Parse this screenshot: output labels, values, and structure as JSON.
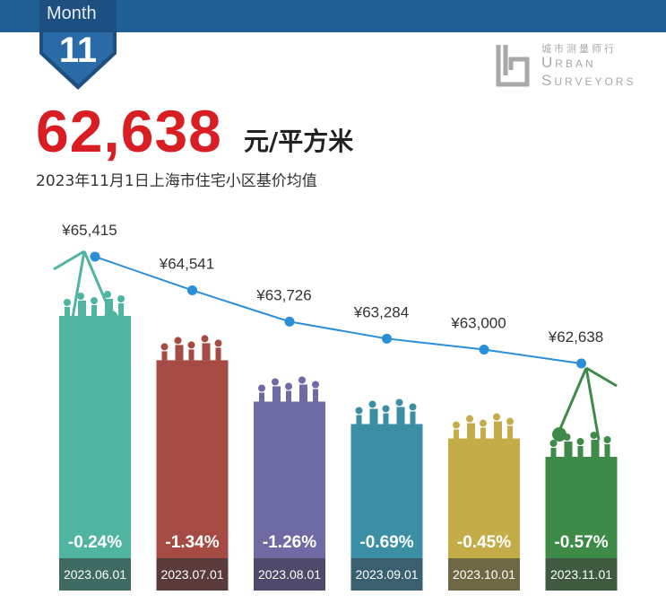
{
  "header": {
    "month_label": "Month",
    "month_number": "11"
  },
  "logo": {
    "chinese": "城市测量师行",
    "english_line1": "Urban",
    "english_line2": "Surveyors"
  },
  "headline": {
    "value": "62,638",
    "unit": "元/平方米",
    "subtitle": "2023年11月1日上海市住宅小区基价均值"
  },
  "colors": {
    "header_band": "#1f5f95",
    "headline_value": "#d81e23",
    "line": "#2a8ed8",
    "bars": [
      "#4fb5a0",
      "#a64a44",
      "#6e6aa4",
      "#3a8fa4",
      "#c4ac48",
      "#3e8a48"
    ],
    "date_boxes": [
      "#3f6b63",
      "#5a3a3a",
      "#4f4a6a",
      "#3a5f6f",
      "#6f6845",
      "#3f5a3f"
    ]
  },
  "chart_data": {
    "type": "bar",
    "categories": [
      "2023.06.01",
      "2023.07.01",
      "2023.08.01",
      "2023.09.01",
      "2023.10.01",
      "2023.11.01"
    ],
    "price_labels": [
      "¥65,415",
      "¥64,541",
      "¥63,726",
      "¥63,284",
      "¥63,000",
      "¥62,638"
    ],
    "values": [
      65415,
      64541,
      63726,
      63284,
      63000,
      62638
    ],
    "change_labels": [
      "-0.24%",
      "-1.34%",
      "-1.26%",
      "-0.69%",
      "-0.45%",
      "-0.57%"
    ],
    "overlay": "line",
    "title": "",
    "xlabel": "",
    "ylabel": "",
    "grid": false,
    "legend": "none"
  }
}
